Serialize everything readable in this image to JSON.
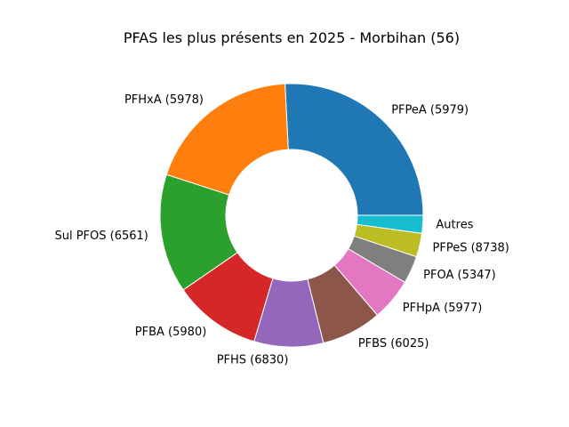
{
  "chart_data": {
    "type": "pie",
    "donut": true,
    "title": "PFAS les plus présents en 2025 - Morbihan (56)",
    "start_angle_deg": 0,
    "direction": "counterclockwise",
    "slices": [
      {
        "label": "PFPeA (5979)",
        "value": 25.8,
        "color": "#1f77b4"
      },
      {
        "label": "PFHxA (5978)",
        "value": 19.2,
        "color": "#ff7f0e"
      },
      {
        "label": "Sul PFOS (6561)",
        "value": 14.6,
        "color": "#2ca02c"
      },
      {
        "label": "PFBA (5980)",
        "value": 10.8,
        "color": "#d62728"
      },
      {
        "label": "PFHS (6830)",
        "value": 8.5,
        "color": "#9467bd"
      },
      {
        "label": "PFBS (6025)",
        "value": 7.4,
        "color": "#8c564b"
      },
      {
        "label": "PFHpA (5977)",
        "value": 5.2,
        "color": "#e377c2"
      },
      {
        "label": "PFOA (5347)",
        "value": 3.4,
        "color": "#7f7f7f"
      },
      {
        "label": "PFPeS (8738)",
        "value": 2.9,
        "color": "#bcbd22"
      },
      {
        "label": "Autres",
        "value": 2.2,
        "color": "#17becf"
      }
    ]
  }
}
